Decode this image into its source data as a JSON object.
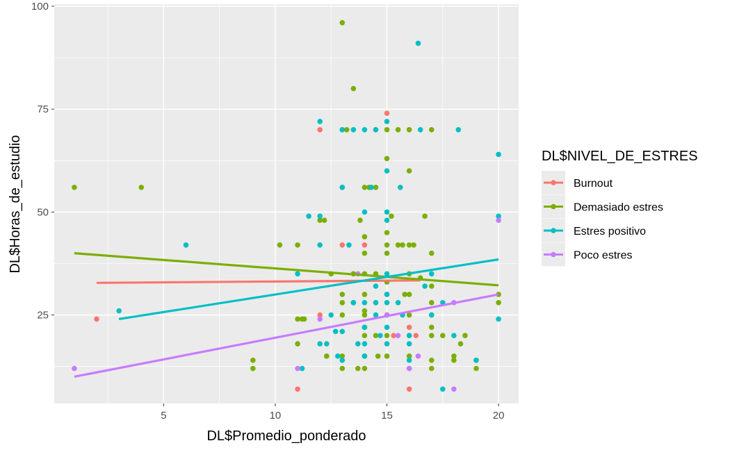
{
  "chart_data": {
    "type": "scatter",
    "xlabel": "DL$Promedio_ponderado",
    "ylabel": "DL$Horas_de_estudio",
    "xlim": [
      0.1,
      20.9
    ],
    "ylim": [
      3.5,
      100.5
    ],
    "x_ticks": [
      5,
      10,
      15,
      20
    ],
    "y_ticks": [
      25,
      50,
      75,
      100
    ],
    "x_tick_labels": [
      "5",
      "10",
      "15",
      "20"
    ],
    "y_tick_labels": [
      "25",
      "50",
      "75",
      "100"
    ],
    "x_minor_ticks": [
      2.5,
      7.5,
      12.5,
      17.5
    ],
    "y_minor_ticks": [
      12.5,
      37.5,
      62.5,
      87.5
    ],
    "grid": true,
    "background": "#ebebeb",
    "legend": {
      "title": "DL$NIVEL_DE_ESTRES",
      "position": "right"
    },
    "series": [
      {
        "name": "Burnout",
        "color": "#F8766D",
        "points": [
          [
            2,
            24
          ],
          [
            12,
            70
          ],
          [
            13,
            42
          ],
          [
            13.5,
            28
          ],
          [
            14,
            42
          ],
          [
            14.5,
            70
          ],
          [
            15,
            74
          ],
          [
            15,
            25
          ],
          [
            15.3,
            20
          ],
          [
            16,
            22
          ],
          [
            16,
            7
          ],
          [
            16.3,
            20
          ],
          [
            11,
            7
          ],
          [
            12,
            25
          ]
        ],
        "fit": [
          [
            2,
            32.8
          ],
          [
            16.5,
            33.4
          ]
        ]
      },
      {
        "name": "Demasiado estres",
        "color": "#7CAE00",
        "points": [
          [
            1,
            56
          ],
          [
            4,
            56
          ],
          [
            9,
            12
          ],
          [
            9,
            14
          ],
          [
            10.2,
            42
          ],
          [
            11,
            42
          ],
          [
            11,
            24
          ],
          [
            11,
            18
          ],
          [
            11.2,
            24
          ],
          [
            11.3,
            24
          ],
          [
            12,
            48
          ],
          [
            12.2,
            48
          ],
          [
            12.3,
            15
          ],
          [
            12.5,
            35
          ],
          [
            13,
            96
          ],
          [
            13,
            70
          ],
          [
            13,
            56
          ],
          [
            13,
            30
          ],
          [
            13,
            28
          ],
          [
            13,
            25
          ],
          [
            13,
            15
          ],
          [
            13,
            12
          ],
          [
            13.2,
            70
          ],
          [
            13.5,
            80
          ],
          [
            13.5,
            28
          ],
          [
            13.5,
            35
          ],
          [
            13.7,
            12
          ],
          [
            13.8,
            48
          ],
          [
            14,
            56
          ],
          [
            14,
            44
          ],
          [
            14,
            40
          ],
          [
            14,
            35
          ],
          [
            14,
            30
          ],
          [
            14,
            26
          ],
          [
            14,
            25
          ],
          [
            14,
            22
          ],
          [
            14,
            20
          ],
          [
            14,
            15
          ],
          [
            14,
            12
          ],
          [
            14.2,
            56
          ],
          [
            14.5,
            56
          ],
          [
            14.5,
            35
          ],
          [
            14.5,
            28
          ],
          [
            14.5,
            20
          ],
          [
            14.6,
            15
          ],
          [
            15,
            70
          ],
          [
            15,
            63
          ],
          [
            15,
            45
          ],
          [
            15,
            42
          ],
          [
            15,
            40
          ],
          [
            15,
            33
          ],
          [
            15,
            30
          ],
          [
            15,
            25
          ],
          [
            15,
            20
          ],
          [
            15,
            15
          ],
          [
            15.2,
            49
          ],
          [
            15.5,
            70
          ],
          [
            15.5,
            42
          ],
          [
            15.7,
            42
          ],
          [
            15.8,
            30
          ],
          [
            16,
            70
          ],
          [
            16,
            60
          ],
          [
            16,
            42
          ],
          [
            16,
            35
          ],
          [
            16,
            30
          ],
          [
            16,
            25
          ],
          [
            16,
            20
          ],
          [
            16,
            15
          ],
          [
            16,
            12
          ],
          [
            16.2,
            42
          ],
          [
            16.5,
            34
          ],
          [
            16.7,
            49
          ],
          [
            17,
            70
          ],
          [
            17,
            40
          ],
          [
            17,
            32
          ],
          [
            17,
            28
          ],
          [
            17,
            25
          ],
          [
            17,
            22
          ],
          [
            17,
            20
          ],
          [
            17,
            14
          ],
          [
            17,
            12
          ],
          [
            17.5,
            20
          ],
          [
            18,
            14
          ],
          [
            18,
            15
          ],
          [
            18.3,
            18
          ],
          [
            18.5,
            20
          ],
          [
            19,
            12
          ],
          [
            19,
            14
          ],
          [
            20,
            30
          ],
          [
            20,
            28
          ]
        ],
        "fit": [
          [
            1,
            40.0
          ],
          [
            20,
            32.2
          ]
        ]
      },
      {
        "name": "Estres positivo",
        "color": "#00BFC4",
        "points": [
          [
            3,
            26
          ],
          [
            6,
            42
          ],
          [
            11,
            35
          ],
          [
            11.2,
            12
          ],
          [
            11.5,
            49
          ],
          [
            12,
            72
          ],
          [
            12,
            49
          ],
          [
            12,
            42
          ],
          [
            12,
            18
          ],
          [
            12.3,
            18
          ],
          [
            12.5,
            25
          ],
          [
            12.7,
            21
          ],
          [
            12.8,
            15
          ],
          [
            13,
            70
          ],
          [
            13,
            56
          ],
          [
            13,
            21
          ],
          [
            13,
            14
          ],
          [
            13.3,
            42
          ],
          [
            13.5,
            70
          ],
          [
            13.5,
            28
          ],
          [
            13.7,
            18
          ],
          [
            14,
            70
          ],
          [
            14,
            50
          ],
          [
            14,
            28
          ],
          [
            14,
            22
          ],
          [
            14,
            18
          ],
          [
            14,
            15
          ],
          [
            14.3,
            56
          ],
          [
            14.5,
            70
          ],
          [
            14.5,
            32
          ],
          [
            14.5,
            28
          ],
          [
            14.5,
            25
          ],
          [
            14.7,
            20
          ],
          [
            15,
            72
          ],
          [
            15,
            60
          ],
          [
            15,
            50
          ],
          [
            15,
            48
          ],
          [
            15,
            35
          ],
          [
            15,
            30
          ],
          [
            15,
            28
          ],
          [
            15,
            22
          ],
          [
            15,
            18
          ],
          [
            15.5,
            28
          ],
          [
            15.6,
            56
          ],
          [
            15.7,
            25
          ],
          [
            16,
            20
          ],
          [
            16,
            18
          ],
          [
            16,
            14
          ],
          [
            16.4,
            91
          ],
          [
            16.5,
            70
          ],
          [
            16.7,
            32
          ],
          [
            17,
            35
          ],
          [
            17,
            25
          ],
          [
            17.5,
            28
          ],
          [
            17.5,
            7
          ],
          [
            18,
            20
          ],
          [
            18.2,
            70
          ],
          [
            19,
            14
          ],
          [
            20,
            64
          ],
          [
            20,
            49
          ],
          [
            20,
            24
          ]
        ],
        "fit": [
          [
            3,
            24.0
          ],
          [
            20,
            38.5
          ]
        ]
      },
      {
        "name": "Poco estres",
        "color": "#C77CFF",
        "points": [
          [
            1,
            12
          ],
          [
            11,
            12
          ],
          [
            12,
            24
          ],
          [
            13.7,
            35
          ],
          [
            15,
            25
          ],
          [
            15.5,
            20
          ],
          [
            16,
            12
          ],
          [
            16.4,
            15
          ],
          [
            18,
            7
          ],
          [
            18,
            28
          ],
          [
            20,
            48
          ]
        ],
        "fit": [
          [
            1,
            10.0
          ],
          [
            20,
            30.0
          ]
        ]
      }
    ]
  }
}
